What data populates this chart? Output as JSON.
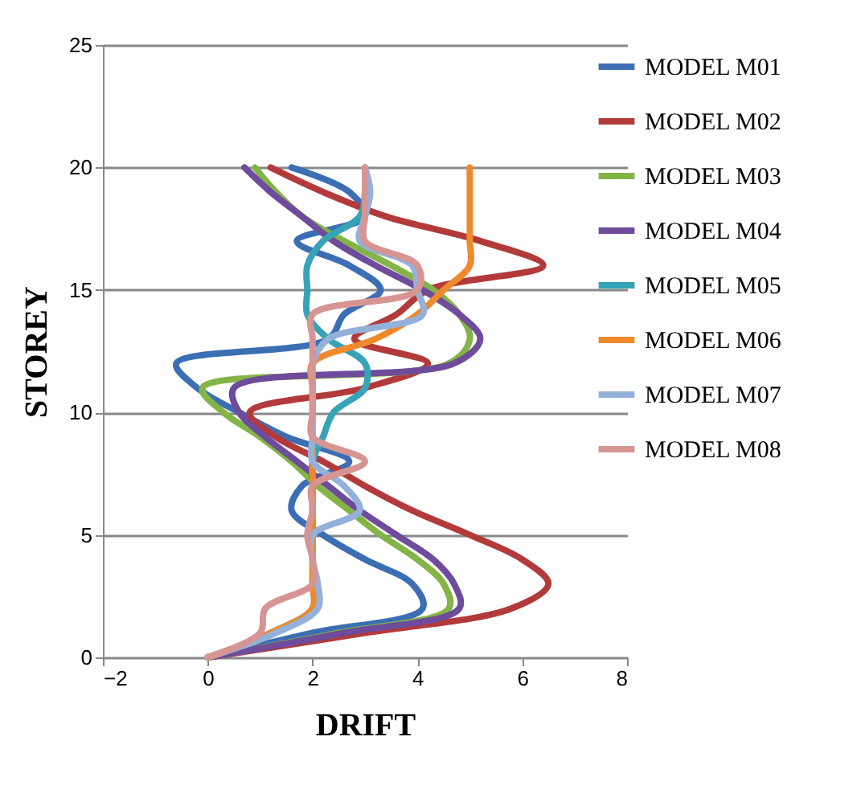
{
  "chart_data": {
    "type": "line",
    "orientation": "horizontal",
    "xlabel": "DRIFT",
    "ylabel": "STOREY",
    "x": [
      0,
      1,
      2,
      3,
      4,
      5,
      6,
      7,
      8,
      9,
      10,
      11,
      12,
      13,
      14,
      15,
      16,
      17,
      18,
      19,
      20
    ],
    "xlim": [
      -2,
      8
    ],
    "xticks": [
      -2,
      0,
      2,
      4,
      6,
      8
    ],
    "ylim": [
      0,
      25
    ],
    "yticks": [
      0,
      5,
      10,
      15,
      20,
      25
    ],
    "grid": "y",
    "legend": "right",
    "marker": "none",
    "line_style": "solid",
    "series": [
      {
        "name": "MODEL M01",
        "color": "#3c6eb4",
        "values": [
          0,
          2.0,
          4.1,
          3.9,
          3.0,
          2.2,
          1.6,
          1.8,
          2.7,
          1.5,
          0.6,
          -0.2,
          -0.6,
          2.3,
          2.6,
          3.3,
          2.7,
          1.7,
          3.0,
          2.7,
          1.6
        ]
      },
      {
        "name": "MODEL M02",
        "color": "#b33a3a",
        "values": [
          0,
          3.0,
          5.8,
          6.5,
          6.0,
          5.0,
          3.9,
          3.0,
          2.2,
          1.3,
          0.8,
          3.0,
          4.2,
          2.8,
          3.6,
          4.2,
          6.4,
          5.2,
          3.4,
          2.2,
          1.2
        ]
      },
      {
        "name": "MODEL M03",
        "color": "#82b446",
        "values": [
          0,
          2.5,
          4.6,
          4.5,
          4.0,
          3.3,
          2.7,
          2.1,
          1.6,
          1.0,
          0.3,
          -0.1,
          4.6,
          5.0,
          4.8,
          4.3,
          3.5,
          2.6,
          1.8,
          1.3,
          0.9
        ]
      },
      {
        "name": "MODEL M04",
        "color": "#6e4b9b",
        "values": [
          0,
          2.6,
          4.8,
          4.7,
          4.3,
          3.6,
          2.9,
          2.3,
          1.7,
          1.1,
          0.6,
          0.5,
          4.7,
          5.2,
          4.8,
          4.1,
          3.2,
          2.4,
          1.8,
          1.2,
          0.7
        ]
      },
      {
        "name": "MODEL M05",
        "color": "#36a3b7",
        "values": [
          0,
          1.2,
          2.0,
          2.0,
          null,
          2.0,
          null,
          2.0,
          2.0,
          2.2,
          2.4,
          3.0,
          3.0,
          2.3,
          1.9,
          1.9,
          1.9,
          2.2,
          2.9,
          3.0,
          3.0
        ]
      },
      {
        "name": "MODEL M06",
        "color": "#ef8a2c",
        "values": [
          0,
          1.2,
          2.0,
          2.0,
          2.0,
          2.0,
          2.0,
          2.0,
          2.0,
          2.0,
          2.0,
          2.0,
          2.0,
          3.2,
          4.0,
          4.5,
          5.0,
          5.0,
          5.0,
          5.0,
          5.0
        ]
      },
      {
        "name": "MODEL M07",
        "color": "#94b1da",
        "values": [
          0,
          1.3,
          2.1,
          2.1,
          2.0,
          2.0,
          2.9,
          2.6,
          2.0,
          2.0,
          2.0,
          2.0,
          2.0,
          2.3,
          4.1,
          4.0,
          3.9,
          2.9,
          3.0,
          3.1,
          3.0
        ]
      },
      {
        "name": "MODEL M08",
        "color": "#d69592",
        "values": [
          0,
          1.0,
          1.1,
          2.0,
          2.0,
          1.9,
          2.0,
          2.0,
          3.0,
          2.0,
          2.0,
          2.0,
          2.0,
          2.0,
          2.0,
          4.0,
          4.0,
          3.0,
          3.0,
          3.0,
          3.0
        ]
      }
    ]
  }
}
